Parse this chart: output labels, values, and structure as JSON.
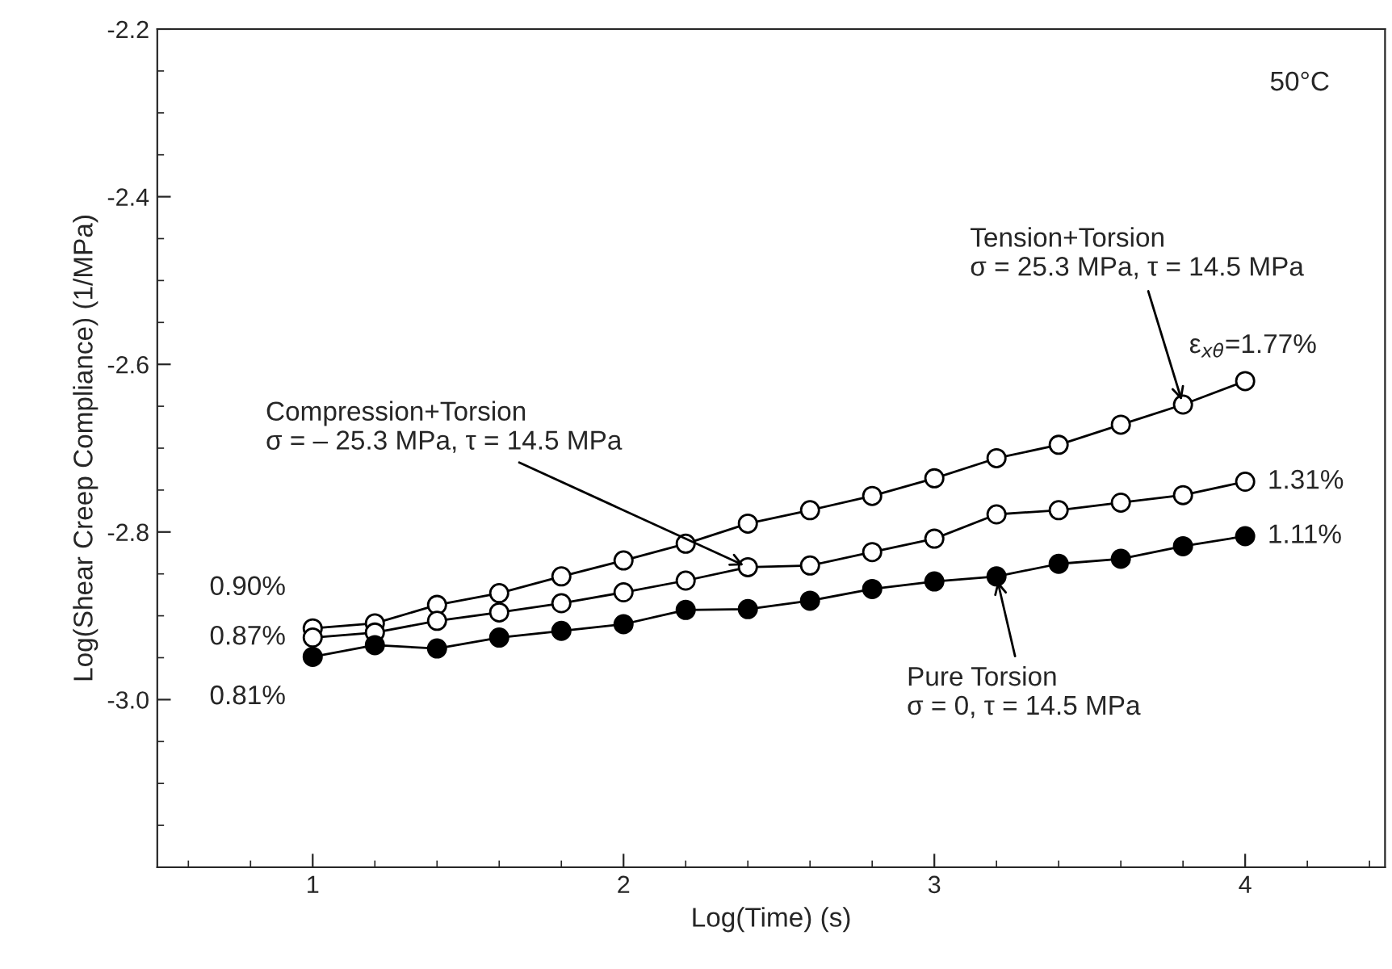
{
  "chart_data": {
    "type": "line",
    "xlabel": "Log(Time) (s)",
    "ylabel": "Log(Shear Creep Compliance) (1/MPa)",
    "x": [
      1.0,
      1.2,
      1.4,
      1.6,
      1.8,
      2.0,
      2.2,
      2.4,
      2.6,
      2.8,
      3.0,
      3.2,
      3.4,
      3.6,
      3.8,
      4.0
    ],
    "series": [
      {
        "color": "#000000",
        "values": [
          -2.915,
          -2.909,
          -2.887,
          -2.873,
          -2.853,
          -2.834,
          -2.814,
          -2.79,
          -2.774,
          -2.757,
          -2.736,
          -2.712,
          -2.696,
          -2.672,
          -2.648,
          -2.62
        ]
      },
      {
        "color": "#000000",
        "values": [
          -2.926,
          -2.92,
          -2.906,
          -2.896,
          -2.885,
          -2.872,
          -2.858,
          -2.842,
          -2.84,
          -2.824,
          -2.808,
          -2.779,
          -2.774,
          -2.765,
          -2.756,
          -2.74
        ]
      },
      {
        "color": "#000000",
        "values": [
          -2.949,
          -2.935,
          -2.939,
          -2.926,
          -2.918,
          -2.91,
          -2.893,
          -2.892,
          -2.882,
          -2.868,
          -2.859,
          -2.853,
          -2.838,
          -2.832,
          -2.817,
          -2.805
        ]
      }
    ],
    "marker": "circle",
    "line_style": "solid",
    "grid": false,
    "legend": false,
    "xlim": [
      0.5,
      4.45
    ],
    "xticks": [
      1,
      2,
      3,
      4
    ],
    "ylim": [
      -3.2,
      -2.2
    ],
    "yticks": [
      -2.2,
      -2.4,
      -2.6,
      -2.8,
      {
        "value": -3.0,
        "label": "-3.0"
      }
    ],
    "annotations": [
      "50°C",
      {
        "text": "Tension+Torsion\nσ = 25.3 MPa, τ = 14.5 MPa",
        "x": 3.8,
        "y": -2.648
      },
      {
        "text": "Compression+Torsion\nσ = – 25.3 MPa, τ = 14.5 MPa",
        "x": 2.4,
        "y": -2.842
      },
      {
        "text": "Pure Torsion\nσ = 0, τ = 14.5 MPa",
        "x": 3.2,
        "y": -2.853
      },
      {
        "text": "ε$_{xθ}$=1.77%",
        "x": 4.0,
        "y": -2.62
      },
      {
        "text": "1.31%",
        "x": 4.0,
        "y": -2.74
      },
      {
        "text": "1.11%",
        "x": 4.0,
        "y": -2.805
      },
      {
        "text": "0.90%",
        "x": 1.0,
        "y": -2.915
      },
      {
        "text": "0.87%",
        "x": 1.0,
        "y": -2.926
      },
      {
        "text": "0.81%",
        "x": 1.0,
        "y": -2.949
      }
    ]
  }
}
